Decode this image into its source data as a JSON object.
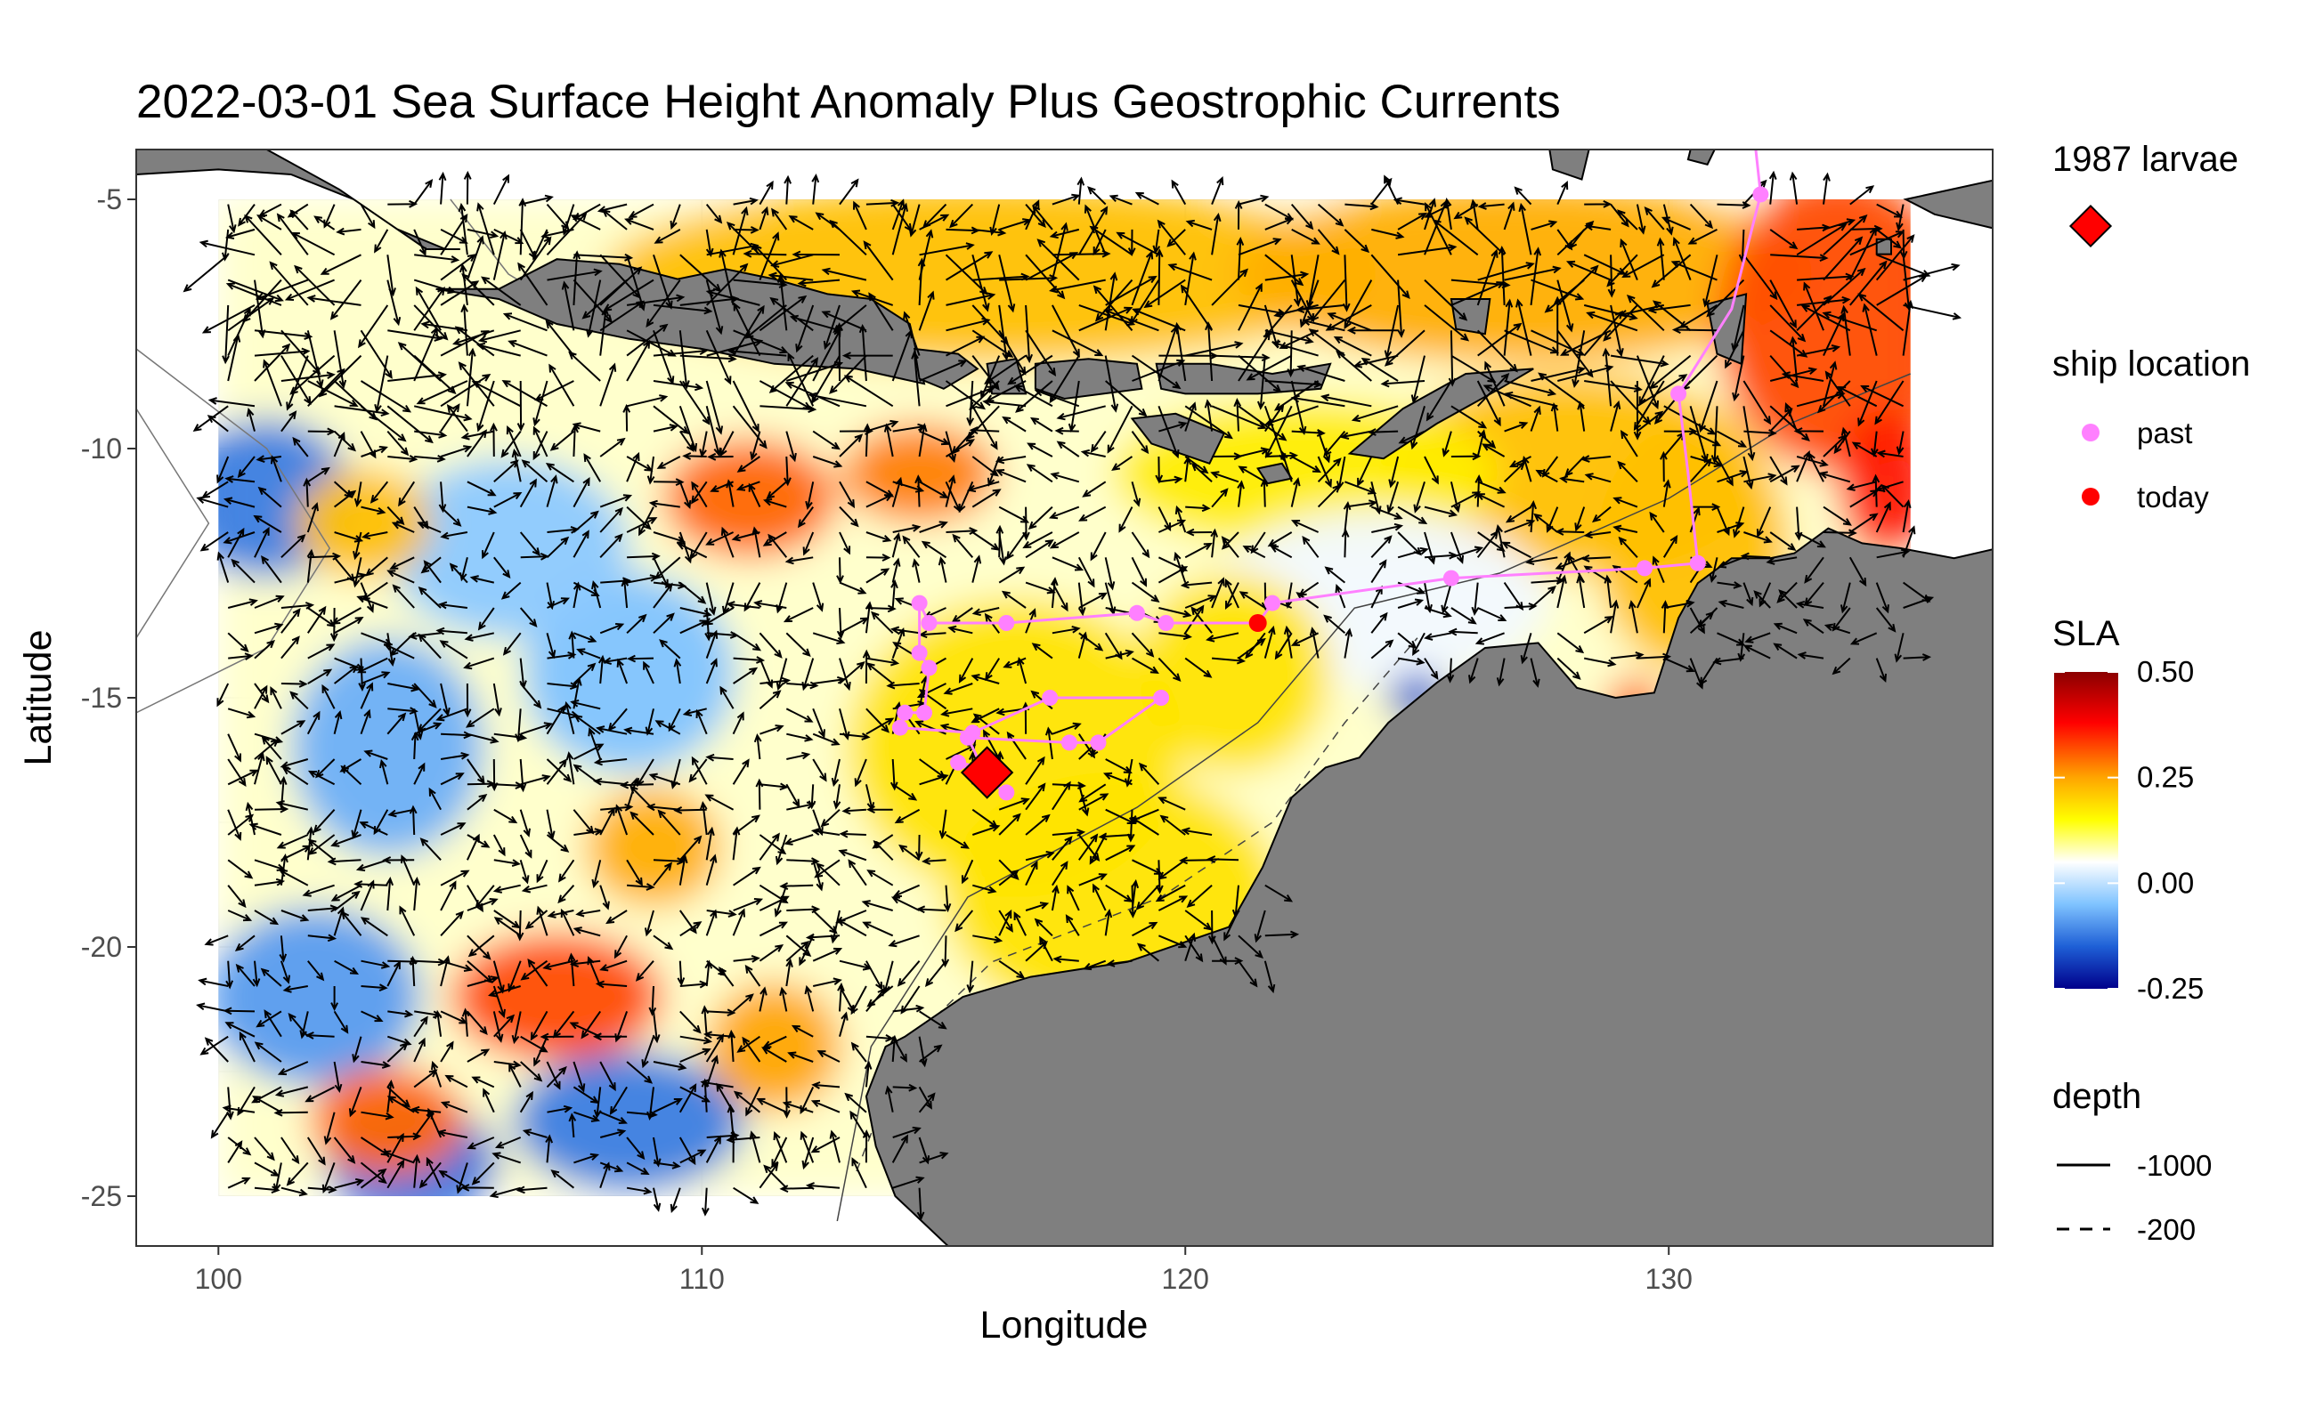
{
  "title": "2022-03-01 Sea Surface Height Anomaly Plus Geostrophic Currents",
  "axes": {
    "xlabel": "Longitude",
    "ylabel": "Latitude",
    "xticks": [
      "100",
      "110",
      "120",
      "130"
    ],
    "yticks": [
      "-5",
      "-10",
      "-15",
      "-20",
      "-25"
    ]
  },
  "legend": {
    "larvae_title": "1987 larvae",
    "ship_title": "ship location",
    "ship_past": "past",
    "ship_today": "today",
    "sla_title": "SLA",
    "sla_ticks": [
      "0.50",
      "0.25",
      "0.00",
      "-0.25"
    ],
    "depth_title": "depth",
    "depth_1000": "-1000",
    "depth_200": "-200"
  },
  "colors": {
    "land": "#7f7f7f",
    "ship_past": "#ff80ff",
    "ship_today": "#ff0000",
    "larvae": "#ff0000",
    "arrow": "#000000",
    "sla_scale": [
      "#00008b",
      "#1e5fd6",
      "#7fc3ff",
      "#ffffff",
      "#ffff00",
      "#ffa500",
      "#ff0000",
      "#8b0000"
    ]
  },
  "chart_data": {
    "type": "map",
    "xlim": [
      98.3,
      136.7
    ],
    "ylim": [
      -26.0,
      -4.0
    ],
    "sla_range": [
      -0.25,
      0.5
    ],
    "sla_grid_extent": {
      "lon": [
        100,
        135
      ],
      "lat": [
        -25,
        -5
      ]
    },
    "sla_eddies": [
      {
        "lon": 101.0,
        "lat": -11.0,
        "value": -0.12,
        "rlon": 1.8,
        "rlat": 1.6
      },
      {
        "lon": 103.5,
        "lat": -16.0,
        "value": -0.07,
        "rlon": 2.0,
        "rlat": 2.2
      },
      {
        "lon": 102.0,
        "lat": -21.0,
        "value": -0.09,
        "rlon": 2.2,
        "rlat": 1.8
      },
      {
        "lon": 104.0,
        "lat": -24.3,
        "value": -0.13,
        "rlon": 1.8,
        "rlat": 1.2
      },
      {
        "lon": 108.5,
        "lat": -23.5,
        "value": -0.12,
        "rlon": 2.4,
        "rlat": 1.4
      },
      {
        "lon": 108.5,
        "lat": -14.5,
        "value": -0.05,
        "rlon": 2.2,
        "rlat": 2.0
      },
      {
        "lon": 106.0,
        "lat": -12.0,
        "value": -0.04,
        "rlon": 2.5,
        "rlat": 1.8
      },
      {
        "lon": 111.0,
        "lat": -11.0,
        "value": 0.3,
        "rlon": 1.8,
        "rlat": 1.2
      },
      {
        "lon": 114.5,
        "lat": -10.5,
        "value": 0.28,
        "rlon": 1.6,
        "rlat": 1.0
      },
      {
        "lon": 107.0,
        "lat": -21.0,
        "value": 0.32,
        "rlon": 2.2,
        "rlat": 1.3
      },
      {
        "lon": 103.5,
        "lat": -23.5,
        "value": 0.3,
        "rlon": 1.6,
        "rlat": 1.1
      },
      {
        "lon": 109.0,
        "lat": -18.0,
        "value": 0.24,
        "rlon": 1.4,
        "rlat": 1.2
      },
      {
        "lon": 111.5,
        "lat": -22.0,
        "value": 0.25,
        "rlon": 1.4,
        "rlat": 1.3
      },
      {
        "lon": 103.0,
        "lat": -11.5,
        "value": 0.22,
        "rlon": 1.4,
        "rlat": 1.1
      },
      {
        "lon": 116.5,
        "lat": -16.0,
        "value": 0.18,
        "rlon": 3.5,
        "rlat": 3.0
      },
      {
        "lon": 118.5,
        "lat": -19.0,
        "value": 0.18,
        "rlon": 3.5,
        "rlat": 2.5
      },
      {
        "lon": 116.0,
        "lat": -6.5,
        "value": 0.22,
        "rlon": 8.0,
        "rlat": 1.8
      },
      {
        "lon": 127.0,
        "lat": -6.5,
        "value": 0.24,
        "rlon": 6.0,
        "rlat": 1.8
      },
      {
        "lon": 133.5,
        "lat": -7.5,
        "value": 0.32,
        "rlon": 2.5,
        "rlat": 3.0
      },
      {
        "lon": 134.5,
        "lat": -10.7,
        "value": 0.36,
        "rlon": 1.0,
        "rlat": 1.5
      },
      {
        "lon": 128.0,
        "lat": -10.5,
        "value": 0.22,
        "rlon": 4.0,
        "rlat": 2.0
      },
      {
        "lon": 130.5,
        "lat": -12.0,
        "value": 0.22,
        "rlon": 2.0,
        "rlat": 2.5
      },
      {
        "lon": 122.5,
        "lat": -10.5,
        "value": 0.17,
        "rlon": 4.0,
        "rlat": 1.5
      },
      {
        "lon": 124.0,
        "lat": -13.0,
        "value": 0.04,
        "rlon": 3.5,
        "rlat": 1.8
      },
      {
        "lon": 124.8,
        "lat": -15.0,
        "value": -0.16,
        "rlon": 0.6,
        "rlat": 0.5
      },
      {
        "lon": 129.3,
        "lat": -15.2,
        "value": 0.3,
        "rlon": 0.6,
        "rlat": 0.6
      },
      {
        "lon": 121.0,
        "lat": -14.5,
        "value": 0.18,
        "rlon": 2.0,
        "rlat": 2.0
      }
    ],
    "ship_track": [
      {
        "lon": 131.8,
        "lat": -4.0
      },
      {
        "lon": 131.9,
        "lat": -4.9
      },
      {
        "lon": 131.3,
        "lat": -7.2
      },
      {
        "lon": 130.2,
        "lat": -8.9
      },
      {
        "lon": 130.4,
        "lat": -10.5
      },
      {
        "lon": 130.6,
        "lat": -12.3
      },
      {
        "lon": 129.5,
        "lat": -12.4
      },
      {
        "lon": 125.5,
        "lat": -12.6
      },
      {
        "lon": 121.8,
        "lat": -13.1
      },
      {
        "lon": 121.5,
        "lat": -13.5
      },
      {
        "lon": 119.6,
        "lat": -13.5
      },
      {
        "lon": 119.0,
        "lat": -13.3
      },
      {
        "lon": 116.3,
        "lat": -13.5
      },
      {
        "lon": 114.7,
        "lat": -13.5
      },
      {
        "lon": 114.5,
        "lat": -13.1
      },
      {
        "lon": 114.5,
        "lat": -14.1
      },
      {
        "lon": 114.7,
        "lat": -14.4
      },
      {
        "lon": 114.6,
        "lat": -15.3
      },
      {
        "lon": 114.2,
        "lat": -15.3
      },
      {
        "lon": 114.1,
        "lat": -15.6
      },
      {
        "lon": 115.6,
        "lat": -15.7
      },
      {
        "lon": 117.2,
        "lat": -15.0
      },
      {
        "lon": 119.5,
        "lat": -15.0
      },
      {
        "lon": 118.2,
        "lat": -15.9
      },
      {
        "lon": 117.6,
        "lat": -15.9
      },
      {
        "lon": 115.5,
        "lat": -15.8
      },
      {
        "lon": 115.8,
        "lat": -16.4
      },
      {
        "lon": 115.3,
        "lat": -16.3
      },
      {
        "lon": 116.3,
        "lat": -16.9
      }
    ],
    "ship_points_past": [
      {
        "lon": 131.9,
        "lat": -4.9
      },
      {
        "lon": 130.2,
        "lat": -8.9
      },
      {
        "lon": 130.6,
        "lat": -12.3
      },
      {
        "lon": 129.5,
        "lat": -12.4
      },
      {
        "lon": 125.5,
        "lat": -12.6
      },
      {
        "lon": 121.8,
        "lat": -13.1
      },
      {
        "lon": 119.6,
        "lat": -13.5
      },
      {
        "lon": 119.0,
        "lat": -13.3
      },
      {
        "lon": 116.3,
        "lat": -13.5
      },
      {
        "lon": 114.7,
        "lat": -13.5
      },
      {
        "lon": 114.5,
        "lat": -13.1
      },
      {
        "lon": 114.5,
        "lat": -14.1
      },
      {
        "lon": 114.7,
        "lat": -14.4
      },
      {
        "lon": 114.6,
        "lat": -15.3
      },
      {
        "lon": 114.2,
        "lat": -15.3
      },
      {
        "lon": 114.1,
        "lat": -15.6
      },
      {
        "lon": 115.6,
        "lat": -15.7
      },
      {
        "lon": 117.2,
        "lat": -15.0
      },
      {
        "lon": 119.5,
        "lat": -15.0
      },
      {
        "lon": 118.2,
        "lat": -15.9
      },
      {
        "lon": 117.6,
        "lat": -15.9
      },
      {
        "lon": 115.5,
        "lat": -15.8
      },
      {
        "lon": 115.3,
        "lat": -16.3
      },
      {
        "lon": 116.3,
        "lat": -16.9
      }
    ],
    "ship_today": {
      "lon": 121.5,
      "lat": -13.5
    },
    "larvae_1987": [
      {
        "lon": 115.9,
        "lat": -16.5
      }
    ],
    "depth_levels": [
      -1000,
      -200
    ]
  }
}
